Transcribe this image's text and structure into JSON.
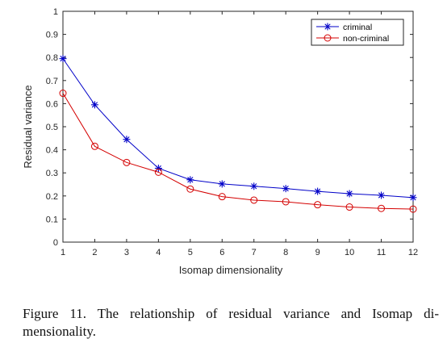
{
  "chart_data": {
    "type": "line",
    "xlabel": "Isomap dimensionality",
    "ylabel": "Residual variance",
    "xlim": [
      1,
      12
    ],
    "ylim": [
      0,
      1
    ],
    "x_ticks": [
      1,
      2,
      3,
      4,
      5,
      6,
      7,
      8,
      9,
      10,
      11,
      12
    ],
    "y_ticks": [
      "0",
      "0.1",
      "0.2",
      "0.3",
      "0.4",
      "0.5",
      "0.6",
      "0.7",
      "0.8",
      "0.9",
      "1"
    ],
    "x": [
      1,
      2,
      3,
      4,
      5,
      6,
      7,
      8,
      9,
      10,
      11,
      12
    ],
    "series": [
      {
        "name": "criminal",
        "color": "#0000c8",
        "marker": "asterisk",
        "values": [
          0.795,
          0.595,
          0.445,
          0.32,
          0.27,
          0.252,
          0.242,
          0.232,
          0.22,
          0.21,
          0.203,
          0.193
        ]
      },
      {
        "name": "non-criminal",
        "color": "#d40000",
        "marker": "circle",
        "values": [
          0.645,
          0.415,
          0.345,
          0.303,
          0.23,
          0.197,
          0.182,
          0.175,
          0.162,
          0.152,
          0.146,
          0.143
        ]
      }
    ],
    "grid": false,
    "legend_position": "top-right"
  },
  "caption": "Figure 11. The relationship of residual variance and Isomap di-mensionality."
}
